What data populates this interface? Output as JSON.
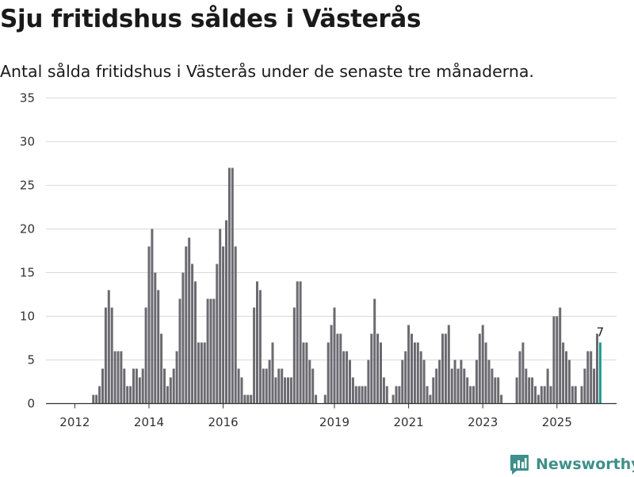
{
  "title": "Sju fritidshus såldes i Västerås",
  "subtitle": "Antal sålda fritidshus i Västerås under de senaste tre månaderna.",
  "brand": {
    "name": "Newsworthy",
    "icon": "newsworthy-chart-icon"
  },
  "colors": {
    "bar": "#6b6a70",
    "highlight": "#1e9a90",
    "grid": "#d9d9d9",
    "axis": "#333333",
    "brand": "#3f8f8a"
  },
  "chart_data": {
    "type": "bar",
    "title": "Sju fritidshus såldes i Västerås",
    "ylabel": "",
    "xlabel": "",
    "ylim": [
      0,
      35
    ],
    "yticks": [
      0,
      5,
      10,
      15,
      20,
      25,
      30,
      35
    ],
    "x_start": "2011-12",
    "xticks": [
      {
        "label": "2012",
        "index": 1
      },
      {
        "label": "2014",
        "index": 25
      },
      {
        "label": "2016",
        "index": 49
      },
      {
        "label": "2019",
        "index": 85
      },
      {
        "label": "2021",
        "index": 109
      },
      {
        "label": "2023",
        "index": 133
      },
      {
        "label": "2025",
        "index": 157
      }
    ],
    "highlight_label": "7",
    "values": [
      0,
      0,
      0,
      0,
      0,
      0,
      0,
      1,
      1,
      2,
      4,
      11,
      13,
      11,
      6,
      6,
      6,
      4,
      2,
      2,
      4,
      4,
      3,
      4,
      11,
      18,
      20,
      15,
      13,
      8,
      4,
      2,
      3,
      4,
      6,
      12,
      15,
      18,
      19,
      16,
      14,
      7,
      7,
      7,
      12,
      12,
      12,
      16,
      20,
      18,
      21,
      27,
      27,
      18,
      4,
      3,
      1,
      1,
      1,
      11,
      14,
      13,
      4,
      4,
      5,
      7,
      3,
      4,
      4,
      3,
      3,
      3,
      11,
      14,
      14,
      7,
      7,
      5,
      4,
      1,
      0,
      0,
      1,
      7,
      9,
      11,
      8,
      8,
      6,
      6,
      5,
      3,
      2,
      2,
      2,
      2,
      5,
      8,
      12,
      8,
      7,
      3,
      2,
      0,
      1,
      2,
      2,
      5,
      6,
      9,
      8,
      7,
      7,
      6,
      5,
      2,
      1,
      3,
      4,
      5,
      8,
      8,
      9,
      4,
      5,
      4,
      5,
      4,
      3,
      2,
      2,
      5,
      8,
      9,
      7,
      5,
      4,
      3,
      3,
      1,
      0,
      0,
      0,
      0,
      3,
      6,
      7,
      4,
      3,
      3,
      2,
      1,
      2,
      2,
      4,
      2,
      10,
      10,
      11,
      7,
      6,
      5,
      2,
      2,
      0,
      2,
      4,
      6,
      6,
      4,
      8,
      7
    ]
  }
}
